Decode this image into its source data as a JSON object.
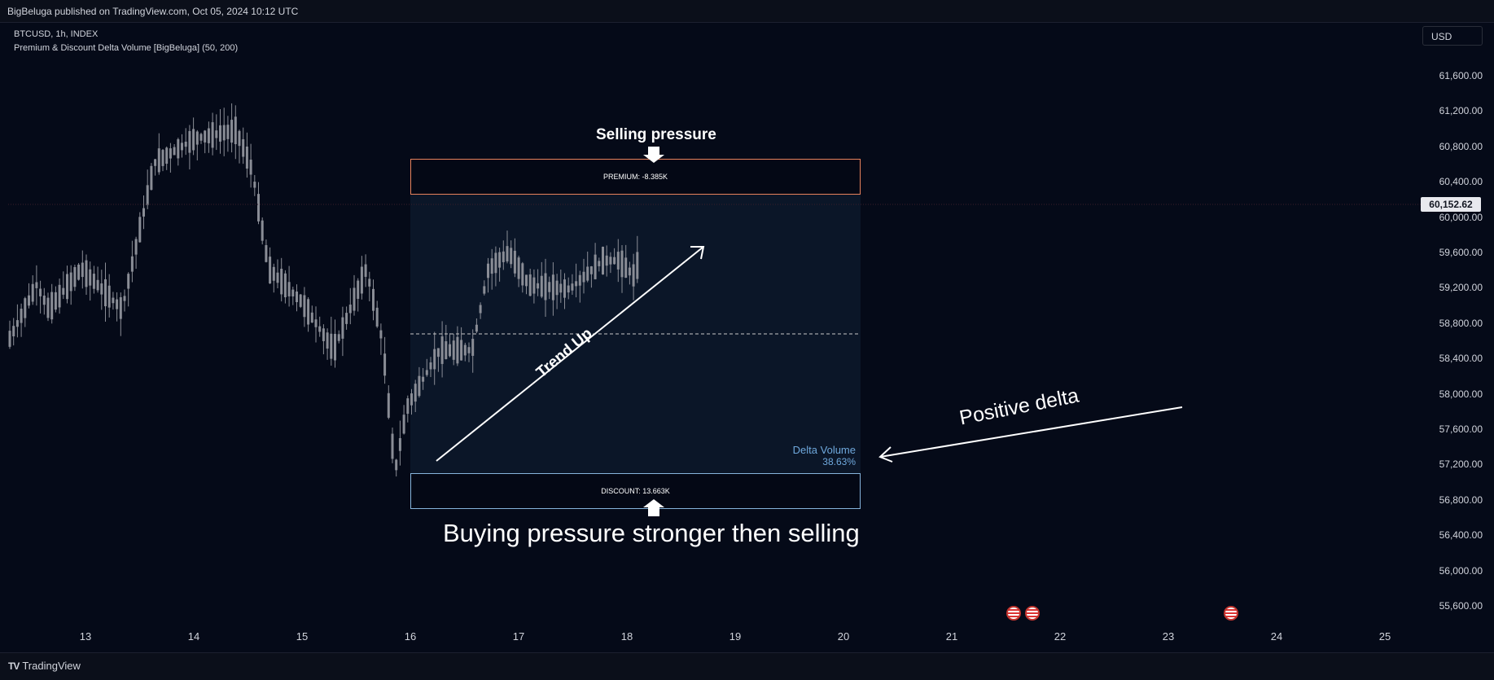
{
  "header": {
    "published_text": "BigBeluga published on TradingView.com, Oct 05, 2024 10:12 UTC"
  },
  "legend": {
    "symbol": "BTCUSD, 1h, INDEX",
    "indicator": "Premium & Discount Delta Volume [BigBeluga] (50, 200)"
  },
  "currency": "USD",
  "price_axis": {
    "ticks": [
      "61,600.00",
      "61,200.00",
      "60,800.00",
      "60,400.00",
      "60,000.00",
      "59,600.00",
      "59,200.00",
      "58,800.00",
      "58,400.00",
      "58,000.00",
      "57,600.00",
      "57,200.00",
      "56,800.00",
      "56,400.00",
      "56,000.00",
      "55,600.00"
    ],
    "current_price": "60,152.62"
  },
  "time_axis": [
    "13",
    "14",
    "15",
    "16",
    "17",
    "18",
    "19",
    "20",
    "21",
    "22",
    "23",
    "24",
    "25"
  ],
  "boxes": {
    "premium": "PREMIUM: -8.385K",
    "discount": "DISCOUNT: 13.663K"
  },
  "delta": {
    "title": "Delta Volume",
    "value": "38.63%"
  },
  "annotations": {
    "selling": "Selling pressure",
    "buying": "Buying pressure stronger then selling",
    "positive": "Positive delta",
    "trend": "Trend Up"
  },
  "footer": {
    "brand": "TradingView"
  },
  "colors": {
    "background": "#050a18",
    "candle": "#8a8d96",
    "premium_border": "#e8825c",
    "discount_border": "#86b4dc",
    "delta_text": "#6fa8dc"
  },
  "icons": [
    "us-flag-event-icon"
  ]
}
